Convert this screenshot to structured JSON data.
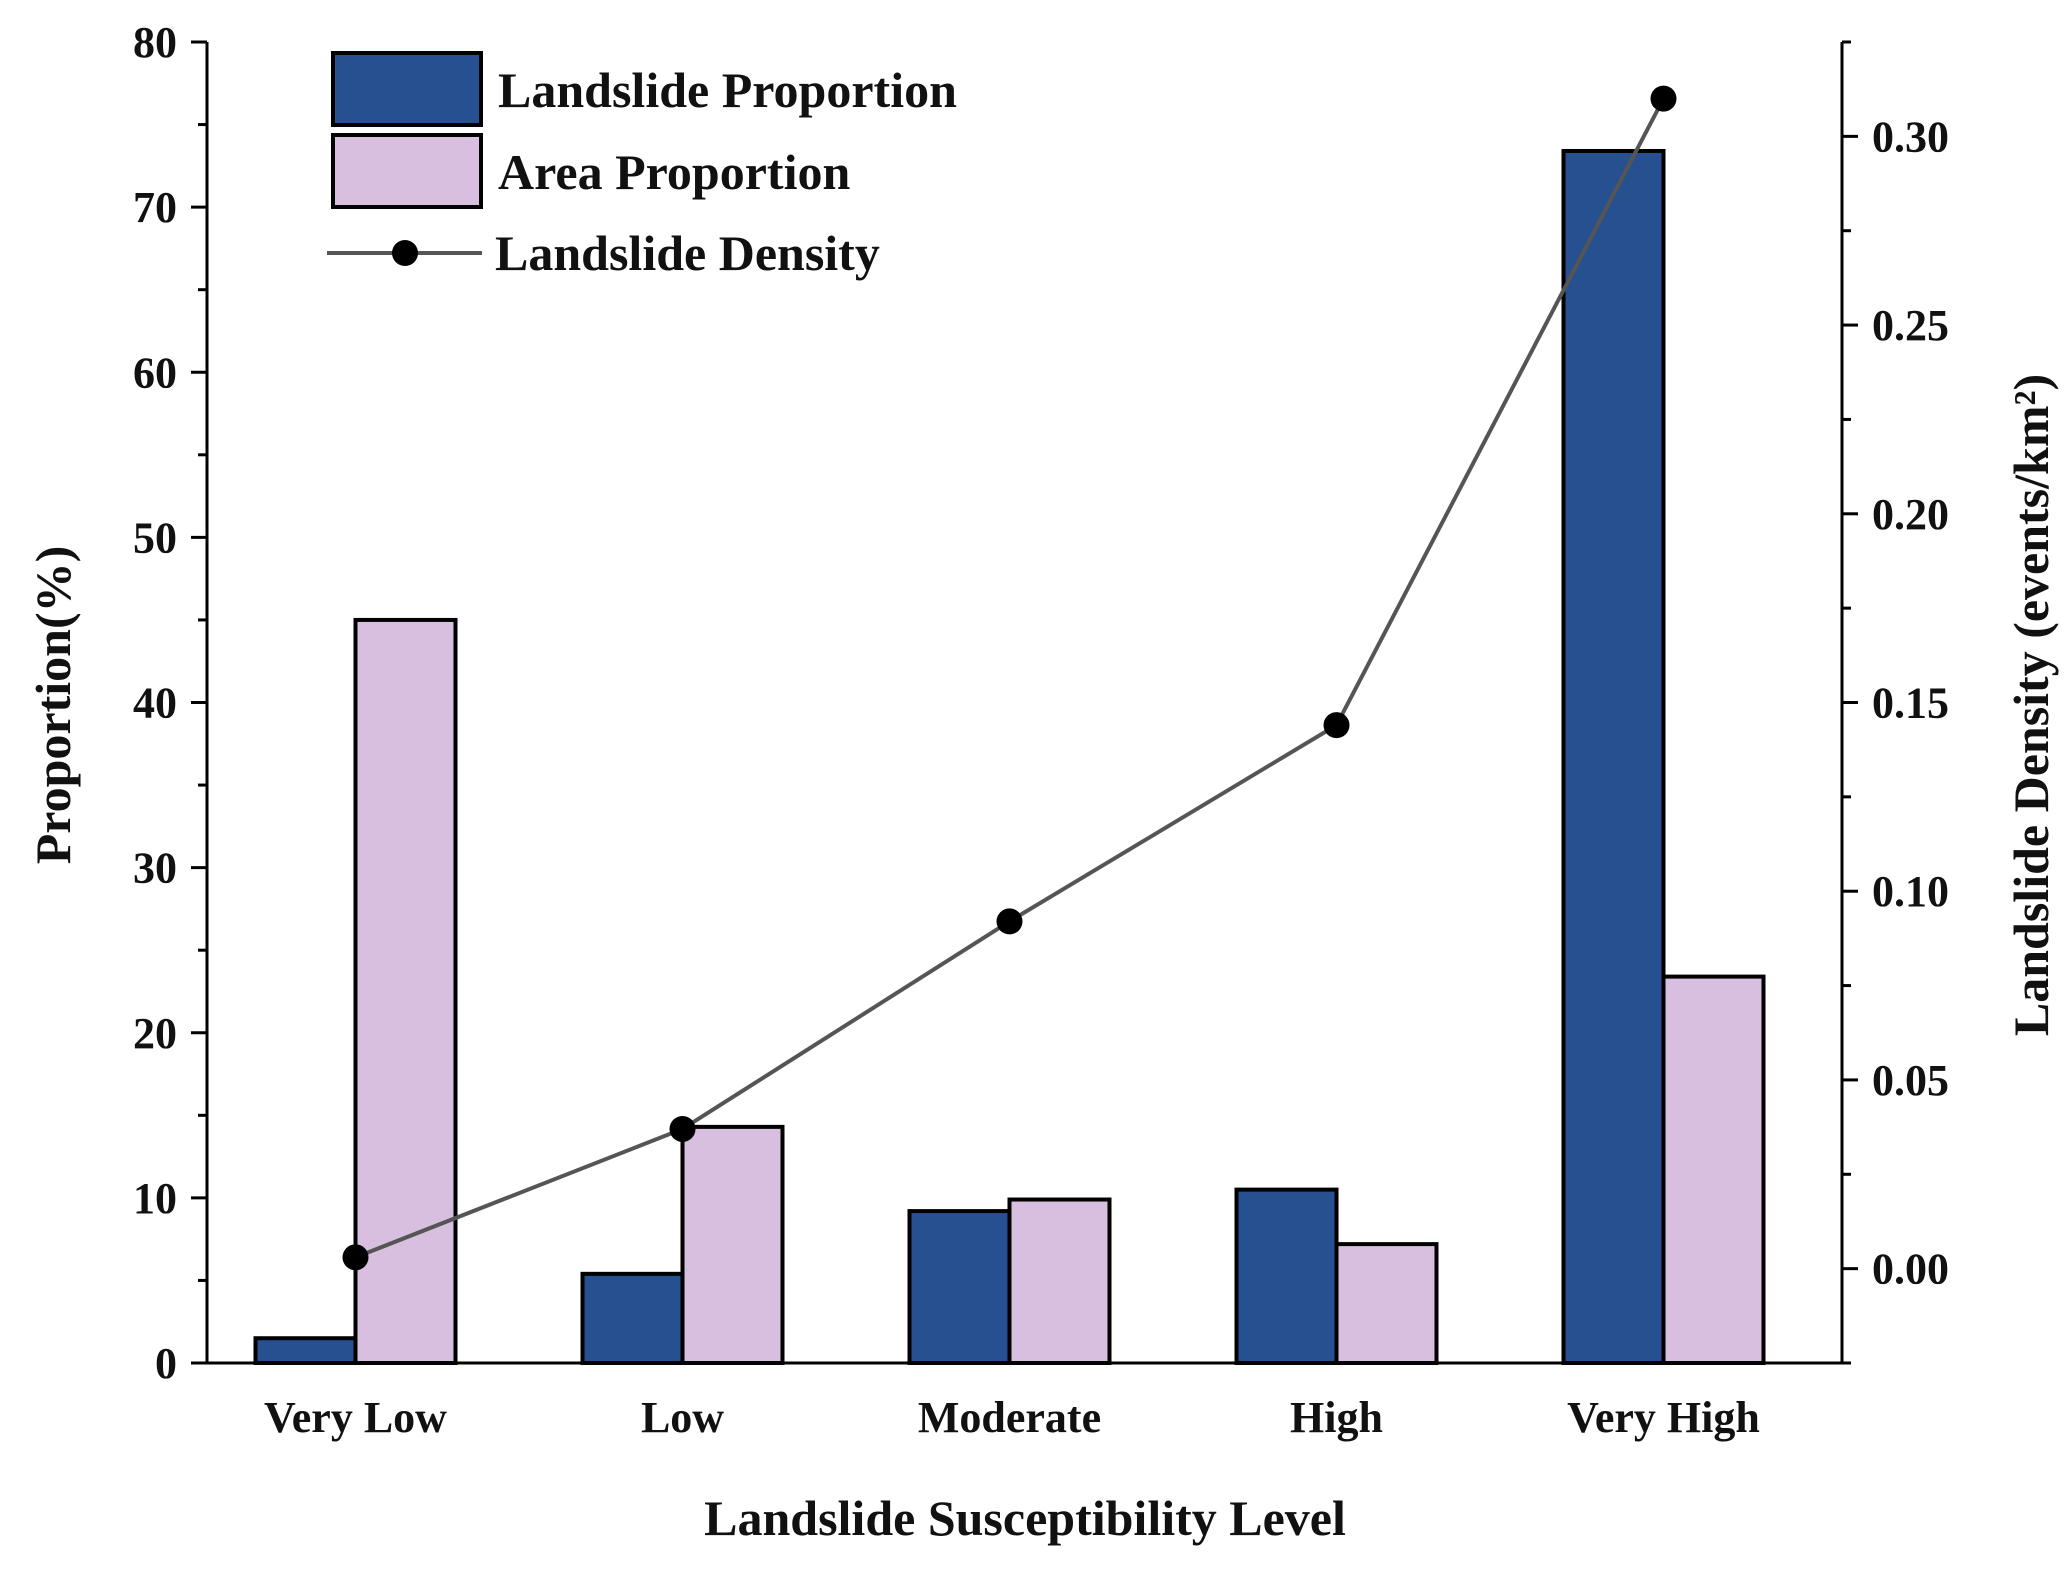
{
  "chart_data": {
    "type": "bar",
    "categories": [
      "Very Low",
      "Low",
      "Moderate",
      "High",
      "Very High"
    ],
    "series": [
      {
        "name": "Landslide Proportion",
        "kind": "bar",
        "axis": "left",
        "color": "#26508f",
        "values": [
          1.5,
          5.4,
          9.2,
          10.5,
          73.4
        ]
      },
      {
        "name": "Area Proportion",
        "kind": "bar",
        "axis": "left",
        "color": "#d8bfe0",
        "values": [
          45.0,
          14.3,
          9.9,
          7.2,
          23.4
        ]
      },
      {
        "name": "Landslide Density",
        "kind": "line",
        "axis": "right",
        "color": "#555555",
        "marker_color": "#000000",
        "values": [
          0.003,
          0.037,
          0.092,
          0.144,
          0.31
        ]
      }
    ],
    "xlabel": "Landslide Susceptibility Level",
    "ylabel": "Proportion(%)",
    "y2label": "Landslide Density (events/km²)",
    "ylim": [
      0,
      80
    ],
    "y2lim": [
      -0.025,
      0.325
    ],
    "yticks": [
      "0",
      "10",
      "20",
      "30",
      "40",
      "50",
      "60",
      "70",
      "80"
    ],
    "y2ticks": [
      "0.00",
      "0.05",
      "0.10",
      "0.15",
      "0.20",
      "0.25",
      "0.30"
    ],
    "legend_position": "top-left",
    "legend": [
      "Landslide Proportion",
      "Area Proportion",
      "Landslide Density"
    ]
  }
}
